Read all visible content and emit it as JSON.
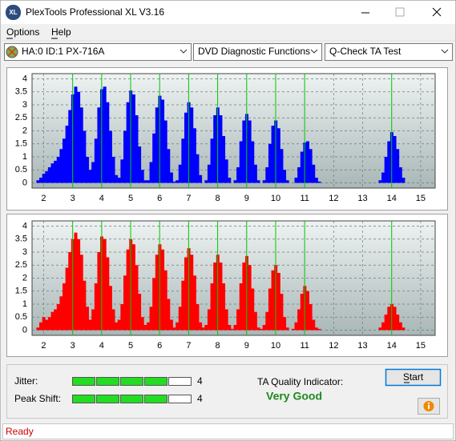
{
  "window": {
    "title": "PlexTools Professional XL V3.16",
    "icon": "XL"
  },
  "menu": [
    "Options",
    "Help"
  ],
  "toolbar": {
    "drive": "HA:0 ID:1  PX-716A",
    "function": "DVD Diagnostic Functions",
    "test": "Q-Check TA Test"
  },
  "chart_data": [
    {
      "type": "bar",
      "color": "#0000ff",
      "x": [
        1.8,
        1.9,
        2.0,
        2.1,
        2.2,
        2.3,
        2.4,
        2.5,
        2.6,
        2.7,
        2.8,
        2.9,
        3.0,
        3.1,
        3.2,
        3.3,
        3.4,
        3.5,
        3.6,
        3.7,
        3.8,
        3.9,
        4.0,
        4.1,
        4.2,
        4.3,
        4.4,
        4.5,
        4.6,
        4.7,
        4.8,
        4.9,
        5.0,
        5.1,
        5.2,
        5.3,
        5.4,
        5.5,
        5.6,
        5.7,
        5.8,
        5.9,
        6.0,
        6.1,
        6.2,
        6.3,
        6.4,
        6.5,
        6.6,
        6.7,
        6.8,
        6.9,
        7.0,
        7.1,
        7.2,
        7.3,
        7.4,
        7.5,
        7.6,
        7.7,
        7.8,
        7.9,
        8.0,
        8.1,
        8.2,
        8.3,
        8.4,
        8.5,
        8.6,
        8.7,
        8.8,
        8.9,
        9.0,
        9.1,
        9.2,
        9.3,
        9.4,
        9.5,
        9.6,
        9.7,
        9.8,
        9.9,
        10.0,
        10.1,
        10.2,
        10.3,
        10.4,
        10.5,
        10.6,
        10.7,
        10.8,
        10.9,
        11.0,
        11.1,
        11.2,
        11.3,
        11.4,
        11.5,
        13.6,
        13.7,
        13.8,
        13.9,
        14.0,
        14.1,
        14.2,
        14.3,
        14.4
      ],
      "values": [
        0.1,
        0.2,
        0.35,
        0.45,
        0.6,
        0.75,
        0.85,
        1.0,
        1.3,
        1.7,
        2.2,
        2.8,
        3.4,
        3.7,
        3.5,
        2.9,
        2.0,
        1.0,
        0.5,
        0.8,
        1.7,
        2.9,
        3.6,
        3.7,
        3.1,
        2.0,
        1.0,
        0.3,
        0.2,
        0.9,
        2.0,
        3.1,
        3.55,
        3.4,
        2.6,
        1.4,
        0.5,
        0.1,
        0.1,
        0.8,
        1.9,
        2.9,
        3.35,
        3.2,
        2.4,
        1.3,
        0.4,
        0.05,
        0.1,
        0.7,
        1.7,
        2.7,
        3.1,
        2.9,
        2.1,
        1.1,
        0.3,
        0,
        0.1,
        0.7,
        1.7,
        2.6,
        2.9,
        2.6,
        1.8,
        0.9,
        0.2,
        0,
        0.1,
        0.6,
        1.6,
        2.4,
        2.65,
        2.4,
        1.6,
        0.7,
        0.1,
        0,
        0.1,
        0.6,
        1.5,
        2.2,
        2.4,
        2.1,
        1.3,
        0.5,
        0.1,
        0,
        0,
        0.2,
        0.6,
        1.2,
        1.55,
        1.6,
        1.3,
        0.7,
        0.2,
        0.05,
        0.1,
        0.4,
        1.0,
        1.6,
        1.95,
        1.8,
        1.3,
        0.6,
        0.2
      ],
      "xlim": [
        1.6,
        15.5
      ],
      "ylim": [
        -0.2,
        4.2
      ],
      "xticks": [
        2,
        3,
        4,
        5,
        6,
        7,
        8,
        9,
        10,
        11,
        12,
        13,
        14,
        15
      ],
      "yticks": [
        0,
        0.5,
        1,
        1.5,
        2,
        2.5,
        3,
        3.5,
        4
      ],
      "grid": true,
      "reference_lines": {
        "x": [
          3,
          4,
          5,
          6,
          7,
          8,
          9,
          10,
          11,
          14
        ],
        "color": "#00cc00"
      }
    },
    {
      "type": "bar",
      "color": "#ff0000",
      "x": [
        1.8,
        1.9,
        2.0,
        2.1,
        2.2,
        2.3,
        2.4,
        2.5,
        2.6,
        2.7,
        2.8,
        2.9,
        3.0,
        3.1,
        3.2,
        3.3,
        3.4,
        3.5,
        3.6,
        3.7,
        3.8,
        3.9,
        4.0,
        4.1,
        4.2,
        4.3,
        4.4,
        4.5,
        4.6,
        4.7,
        4.8,
        4.9,
        5.0,
        5.1,
        5.2,
        5.3,
        5.4,
        5.5,
        5.6,
        5.7,
        5.8,
        5.9,
        6.0,
        6.1,
        6.2,
        6.3,
        6.4,
        6.5,
        6.6,
        6.7,
        6.8,
        6.9,
        7.0,
        7.1,
        7.2,
        7.3,
        7.4,
        7.5,
        7.6,
        7.7,
        7.8,
        7.9,
        8.0,
        8.1,
        8.2,
        8.3,
        8.4,
        8.5,
        8.6,
        8.7,
        8.8,
        8.9,
        9.0,
        9.1,
        9.2,
        9.3,
        9.4,
        9.5,
        9.6,
        9.7,
        9.8,
        9.9,
        10.0,
        10.1,
        10.2,
        10.3,
        10.4,
        10.5,
        10.6,
        10.7,
        10.8,
        10.9,
        11.0,
        11.1,
        11.2,
        11.3,
        11.4,
        11.5,
        13.6,
        13.7,
        13.8,
        13.9,
        14.0,
        14.1,
        14.2,
        14.3,
        14.4
      ],
      "values": [
        0.1,
        0.3,
        0.5,
        0.4,
        0.5,
        0.7,
        0.8,
        1.0,
        1.3,
        1.8,
        2.4,
        3.0,
        3.5,
        3.75,
        3.5,
        2.9,
        1.9,
        0.9,
        0.4,
        0.8,
        1.8,
        3.0,
        3.6,
        3.5,
        2.8,
        1.7,
        0.8,
        0.3,
        0.4,
        1.0,
        2.1,
        3.1,
        3.5,
        3.3,
        2.5,
        1.4,
        0.5,
        0.2,
        0.3,
        0.9,
        2.0,
        2.9,
        3.3,
        3.1,
        2.3,
        1.2,
        0.4,
        0.1,
        0.3,
        0.9,
        1.9,
        2.8,
        3.15,
        2.9,
        2.1,
        1.0,
        0.3,
        0.1,
        0.2,
        0.8,
        1.8,
        2.6,
        2.9,
        2.6,
        1.8,
        0.8,
        0.2,
        0.05,
        0.2,
        0.8,
        1.8,
        2.6,
        2.85,
        2.5,
        1.6,
        0.7,
        0.1,
        0.05,
        0.2,
        0.7,
        1.6,
        2.3,
        2.5,
        2.2,
        1.4,
        0.5,
        0.1,
        0,
        0.05,
        0.3,
        0.8,
        1.4,
        1.7,
        1.5,
        1.0,
        0.4,
        0.1,
        0.05,
        0.1,
        0.3,
        0.6,
        0.9,
        1.0,
        0.9,
        0.6,
        0.3,
        0.1
      ],
      "xlim": [
        1.6,
        15.5
      ],
      "ylim": [
        -0.2,
        4.2
      ],
      "xticks": [
        2,
        3,
        4,
        5,
        6,
        7,
        8,
        9,
        10,
        11,
        12,
        13,
        14,
        15
      ],
      "yticks": [
        0,
        0.5,
        1,
        1.5,
        2,
        2.5,
        3,
        3.5,
        4
      ],
      "grid": true,
      "reference_lines": {
        "x": [
          3,
          4,
          5,
          6,
          7,
          8,
          9,
          10,
          11,
          14
        ],
        "color": "#00cc00"
      }
    }
  ],
  "results": {
    "jitter": {
      "label": "Jitter:",
      "value": 4,
      "scale_max": 5
    },
    "peak_shift": {
      "label": "Peak Shift:",
      "value": 4,
      "scale_max": 5
    },
    "ta_quality_label": "TA Quality Indicator:",
    "ta_quality": "Very Good"
  },
  "buttons": {
    "start": "Start"
  },
  "status": "Ready"
}
